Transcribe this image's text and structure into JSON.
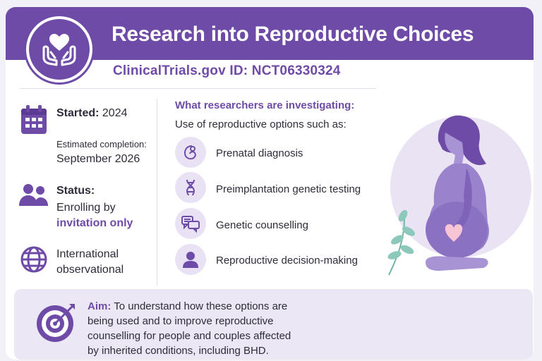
{
  "header": {
    "title": "Research into Reproductive Choices",
    "trial_id_label": "ClinicalTrials.gov ID:",
    "trial_id": "NCT06330324",
    "logo_icon": "hands-holding-heart-icon"
  },
  "facts": {
    "started_label": "Started:",
    "started_value": "2024",
    "completion_label": "Estimated completion:",
    "completion_value": "September 2026",
    "status_label": "Status:",
    "status_line1": "Enrolling by",
    "status_line2": "invitation only",
    "type_line1": "International",
    "type_line2": "observational"
  },
  "investigation": {
    "heading": "What researchers are investigating:",
    "intro": "Use of reproductive options such as:",
    "options": [
      {
        "label": "Prenatal diagnosis",
        "icon": "fetus-icon"
      },
      {
        "label": "Preimplantation genetic testing",
        "icon": "dna-icon"
      },
      {
        "label": "Genetic counselling",
        "icon": "chat-bubbles-icon"
      },
      {
        "label": "Reproductive decision-making",
        "icon": "person-icon"
      }
    ]
  },
  "aim": {
    "label": "Aim:",
    "line1": "To understand how these options are",
    "line2": "being used and to improve reproductive",
    "line3": "counselling for people and couples affected",
    "line4": "by inherited conditions, including BHD."
  },
  "colors": {
    "brand": "#6f4ba8",
    "panel": "#ece7f5",
    "icon_bg": "#e8e2f4",
    "heart": "#f7c5d5"
  }
}
